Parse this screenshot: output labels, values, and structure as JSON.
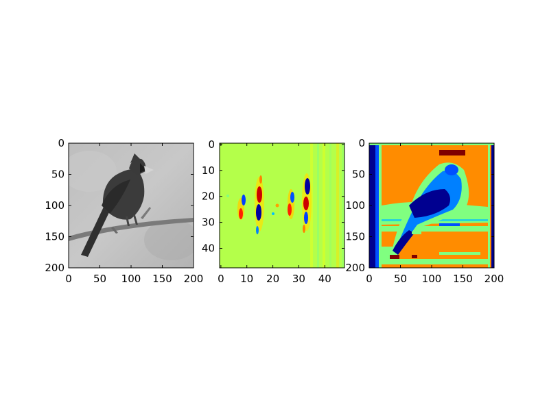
{
  "chart_data": [
    {
      "type": "image",
      "content": "grayscale photograph of a cardinal bird perched on a branch",
      "colormap": "gray",
      "xlim": [
        0,
        200
      ],
      "ylim": [
        200,
        0
      ],
      "xticks": [
        0,
        50,
        100,
        150,
        200
      ],
      "yticks": [
        0,
        50,
        100,
        150,
        200
      ],
      "xticklabels": [
        "0",
        "50",
        "100",
        "150",
        "200"
      ],
      "yticklabels": [
        "0",
        "50",
        "100",
        "150",
        "200"
      ],
      "colors": {
        "background": "#b9b9b9",
        "bird": "#3b3b3b",
        "branch": "#7a7a7a"
      }
    },
    {
      "type": "heatmap",
      "content": "filter response map",
      "colormap": "jet",
      "xlim": [
        0,
        47
      ],
      "ylim": [
        48,
        0
      ],
      "xticks": [
        0,
        10,
        20,
        30,
        40
      ],
      "yticks": [
        0,
        10,
        20,
        30,
        40
      ],
      "xticklabels": [
        "0",
        "10",
        "20",
        "30",
        "40"
      ],
      "yticklabels": [
        "0",
        "10",
        "20",
        "30",
        "40"
      ],
      "colors": {
        "background": "#b4ff4a",
        "high": "#800000",
        "low": "#00008f"
      }
    },
    {
      "type": "heatmap",
      "content": "segmented cardinal bird image",
      "colormap": "jet",
      "xlim": [
        0,
        200
      ],
      "ylim": [
        200,
        0
      ],
      "xticks": [
        0,
        50,
        100,
        150,
        200
      ],
      "yticks": [
        0,
        50,
        100,
        150,
        200
      ],
      "xticklabels": [
        "0",
        "50",
        "100",
        "150",
        "200"
      ],
      "yticklabels": [
        "0",
        "50",
        "100",
        "150",
        "200"
      ],
      "colors": {
        "background": "#ff8c00",
        "bird_outer": "#0080ff",
        "bird_inner": "#000090",
        "green": "#80ff80",
        "border": "#000090"
      }
    }
  ]
}
